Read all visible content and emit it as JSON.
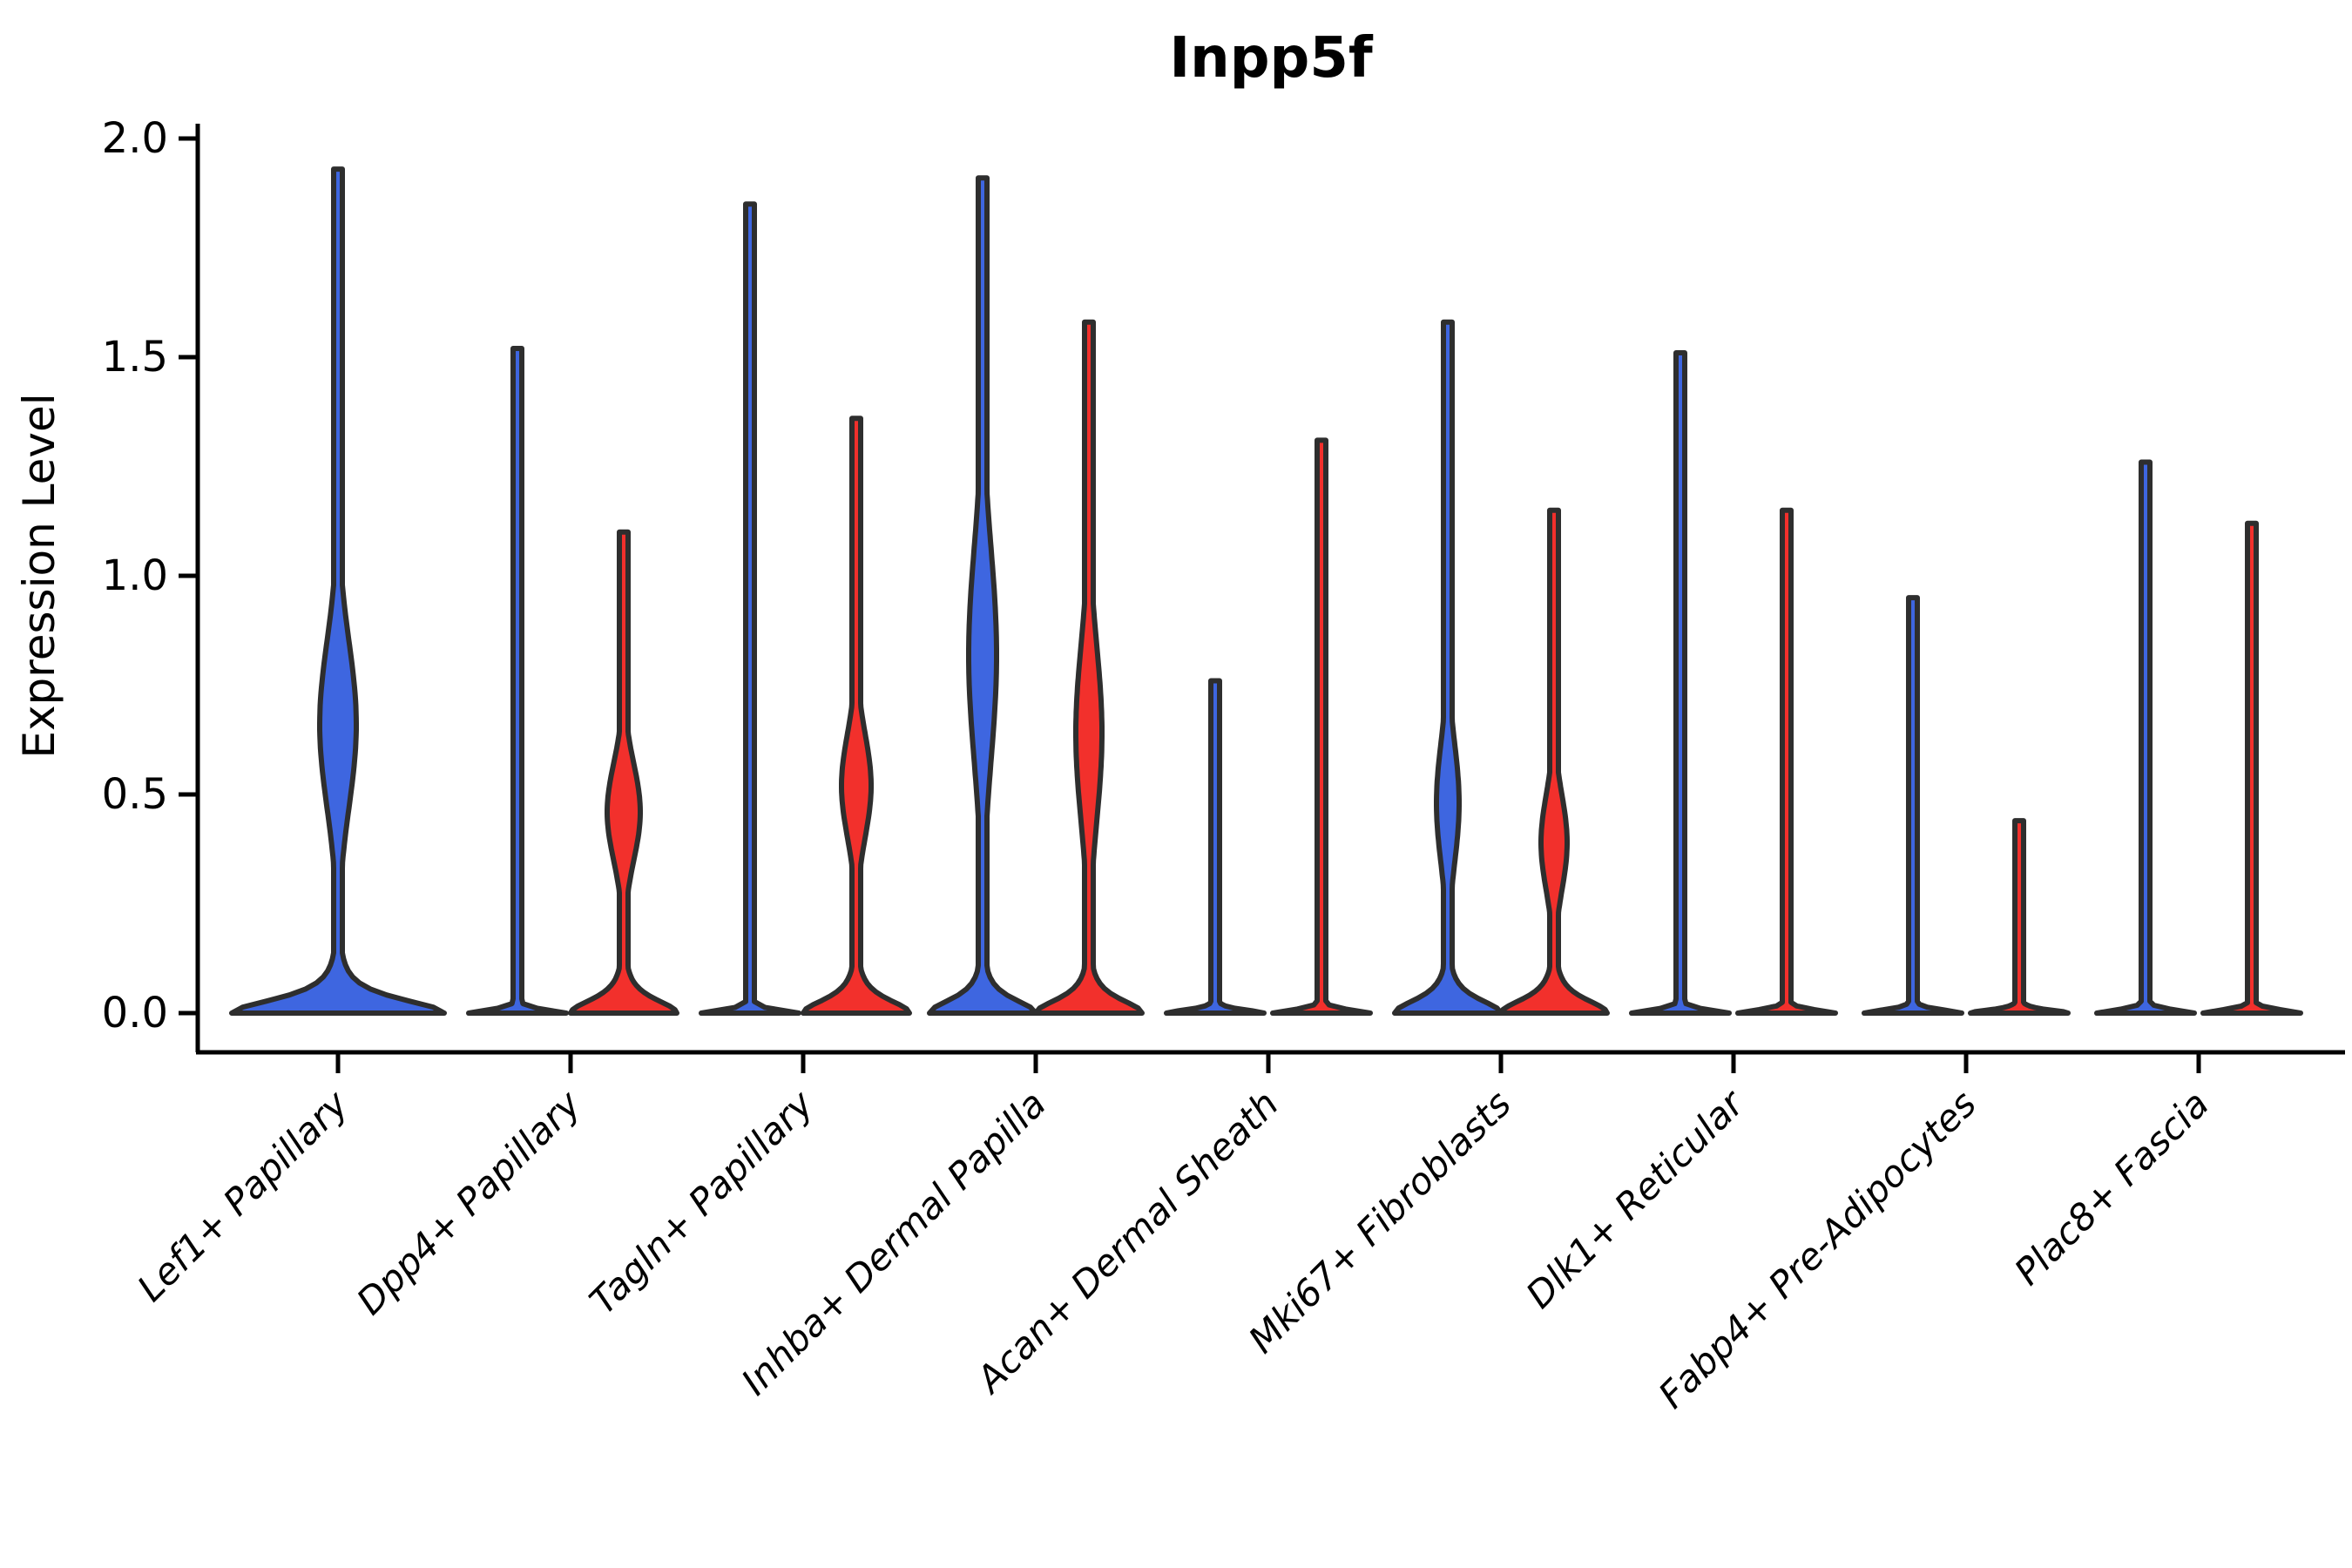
{
  "title": "Inpp5f",
  "y_axis": {
    "label": "Expression Level",
    "ticks": [
      "0.0",
      "0.5",
      "1.0",
      "1.5",
      "2.0"
    ],
    "tick_values": [
      0.0,
      0.5,
      1.0,
      1.5,
      2.0
    ],
    "range": [
      0.0,
      2.0
    ]
  },
  "colors": {
    "blue": "#3e66e0",
    "red": "#f2302c",
    "outline": "#2e2e2e"
  },
  "chart_data": {
    "type": "violin",
    "title": "Inpp5f",
    "ylabel": "Expression Level",
    "ylim": [
      0.0,
      2.0
    ],
    "grid": false,
    "legend": "none",
    "categories": [
      "Lef1+ Papillary",
      "Dpp4+ Papillary",
      "Tagln+ Papillary",
      "Inhba+ Dermal Papilla",
      "Acan+ Dermal Sheath",
      "Mki67+ Fibroblasts",
      "Dlk1+ Reticular",
      "Fabp4+ Pre-Adipocytes",
      "Plac8+ Fascia"
    ],
    "groups": [
      "blue",
      "red"
    ],
    "violins": [
      {
        "category_index": 0,
        "group": "blue",
        "solo": true,
        "max": 1.93,
        "body": true,
        "bulge": {
          "lo": 0.36,
          "peak": 0.66,
          "hi": 1.02,
          "halfwidth": 21
        },
        "base_halfwidth": 122
      },
      {
        "category_index": 1,
        "group": "blue",
        "solo": false,
        "max": 1.52,
        "body": false,
        "bulge": null,
        "base_halfwidth": 56
      },
      {
        "category_index": 1,
        "group": "red",
        "solo": false,
        "max": 1.1,
        "body": true,
        "bulge": {
          "lo": 0.27,
          "peak": 0.46,
          "hi": 0.66,
          "halfwidth": 19
        },
        "base_halfwidth": 61
      },
      {
        "category_index": 2,
        "group": "blue",
        "solo": false,
        "max": 1.85,
        "body": false,
        "bulge": null,
        "base_halfwidth": 56
      },
      {
        "category_index": 2,
        "group": "red",
        "solo": false,
        "max": 1.36,
        "body": true,
        "bulge": {
          "lo": 0.32,
          "peak": 0.52,
          "hi": 0.73,
          "halfwidth": 17
        },
        "base_halfwidth": 61
      },
      {
        "category_index": 3,
        "group": "blue",
        "solo": false,
        "max": 1.91,
        "body": true,
        "bulge": {
          "lo": 0.35,
          "peak": 0.82,
          "hi": 1.2,
          "halfwidth": 16
        },
        "base_halfwidth": 61
      },
      {
        "category_index": 3,
        "group": "red",
        "solo": false,
        "max": 1.58,
        "body": true,
        "bulge": {
          "lo": 0.3,
          "peak": 0.64,
          "hi": 1.0,
          "halfwidth": 15
        },
        "base_halfwidth": 61
      },
      {
        "category_index": 4,
        "group": "blue",
        "solo": false,
        "max": 0.76,
        "body": false,
        "bulge": null,
        "base_halfwidth": 56
      },
      {
        "category_index": 4,
        "group": "red",
        "solo": false,
        "max": 1.31,
        "body": false,
        "bulge": null,
        "base_halfwidth": 56
      },
      {
        "category_index": 5,
        "group": "blue",
        "solo": false,
        "max": 1.58,
        "body": true,
        "bulge": {
          "lo": 0.24,
          "peak": 0.48,
          "hi": 0.72,
          "halfwidth": 13
        },
        "base_halfwidth": 61
      },
      {
        "category_index": 5,
        "group": "red",
        "solo": false,
        "max": 1.15,
        "body": true,
        "bulge": {
          "lo": 0.2,
          "peak": 0.39,
          "hi": 0.58,
          "halfwidth": 15
        },
        "base_halfwidth": 61
      },
      {
        "category_index": 6,
        "group": "blue",
        "solo": false,
        "max": 1.51,
        "body": false,
        "bulge": null,
        "base_halfwidth": 56
      },
      {
        "category_index": 6,
        "group": "red",
        "solo": false,
        "max": 1.15,
        "body": false,
        "bulge": null,
        "base_halfwidth": 56
      },
      {
        "category_index": 7,
        "group": "blue",
        "solo": false,
        "max": 0.95,
        "body": false,
        "bulge": null,
        "base_halfwidth": 56
      },
      {
        "category_index": 7,
        "group": "red",
        "solo": false,
        "max": 0.44,
        "body": false,
        "bulge": null,
        "base_halfwidth": 56
      },
      {
        "category_index": 8,
        "group": "blue",
        "solo": false,
        "max": 1.26,
        "body": false,
        "bulge": null,
        "base_halfwidth": 56
      },
      {
        "category_index": 8,
        "group": "red",
        "solo": false,
        "max": 1.12,
        "body": false,
        "bulge": null,
        "base_halfwidth": 56
      }
    ]
  }
}
